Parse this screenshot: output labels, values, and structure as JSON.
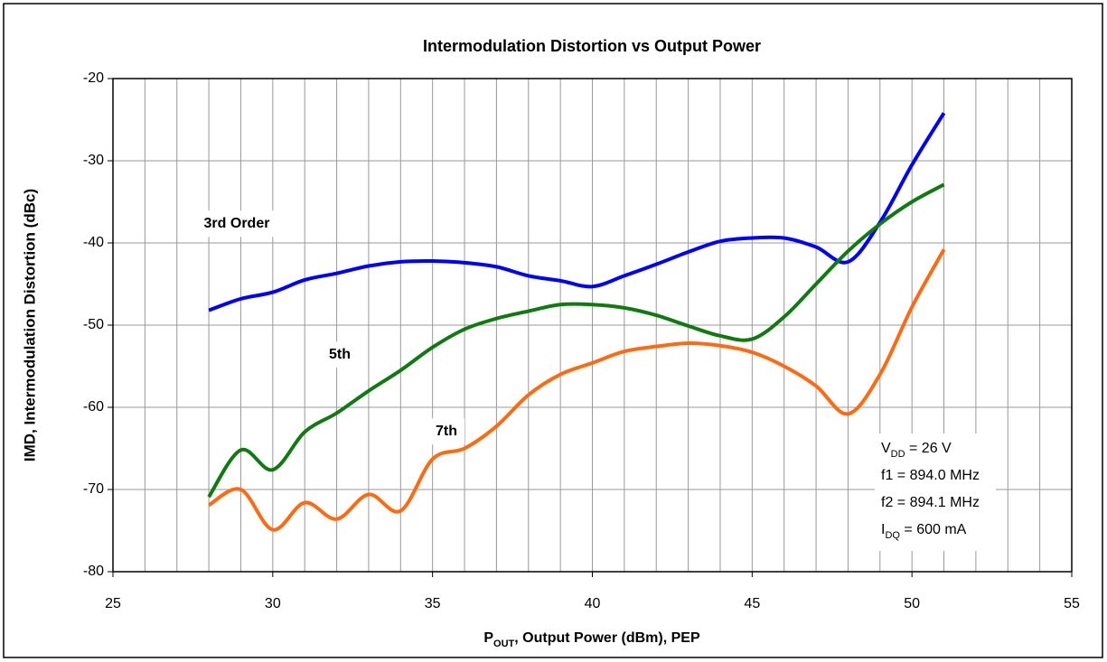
{
  "chart_data": {
    "type": "line",
    "title": "Intermodulation Distortion vs Output Power",
    "y_label": "IMD, Intermodulation Distortion (dBc)",
    "x_label": [
      {
        "text": "P"
      },
      {
        "text": "OUT",
        "sub": true
      },
      {
        "text": ", Output Power (dBm), PEP"
      }
    ],
    "x": [
      28,
      29,
      30,
      31,
      32,
      33,
      34,
      35,
      36,
      37,
      38,
      39,
      40,
      41,
      42,
      43,
      44,
      45,
      46,
      47,
      48,
      49,
      50,
      51
    ],
    "series": [
      {
        "name": "3rd Order",
        "color": "#0000ff",
        "values": [
          -48.2,
          -46.8,
          -46,
          -44.5,
          -43.7,
          -42.8,
          -42.3,
          -42.2,
          -42.4,
          -42.9,
          -44,
          -44.6,
          -45.3,
          -44,
          -42.6,
          -41.1,
          -39.8,
          -39.4,
          -39.4,
          -40.5,
          -42.3,
          -37.5,
          -30.5,
          -24.2
        ]
      },
      {
        "name": "5th",
        "color": "#0f7a0f",
        "values": [
          -70.9,
          -65.2,
          -67.6,
          -63,
          -60.7,
          -58,
          -55.5,
          -52.7,
          -50.5,
          -49.2,
          -48.3,
          -47.5,
          -47.5,
          -47.9,
          -48.8,
          -50.1,
          -51.3,
          -51.7,
          -49,
          -45,
          -41,
          -37.7,
          -35,
          -32.9
        ]
      },
      {
        "name": "7th",
        "color": "#ff6a10",
        "values": [
          -71.9,
          -70,
          -74.9,
          -71.6,
          -73.6,
          -70.6,
          -72.6,
          -66.3,
          -65,
          -62.3,
          -58.5,
          -56,
          -54.6,
          -53.2,
          -52.6,
          -52.2,
          -52.5,
          -53.3,
          -55,
          -57.4,
          -60.8,
          -56,
          -47.8,
          -40.8
        ]
      }
    ],
    "xlim": [
      25,
      55
    ],
    "xticks": [
      25,
      30,
      35,
      40,
      45,
      50,
      55
    ],
    "x_minor_grid": [
      26,
      27,
      28,
      29,
      31,
      32,
      33,
      34,
      36,
      37,
      38,
      39,
      41,
      42,
      43,
      44,
      46,
      47,
      48,
      49,
      51,
      52,
      53,
      54
    ],
    "ylim": [
      -80,
      -20
    ],
    "yticks": [
      -80,
      -70,
      -60,
      -50,
      -40,
      -30,
      -20
    ],
    "grid": true,
    "annotation": [
      [
        {
          "text": "V"
        },
        {
          "text": "DD",
          "sub": true
        },
        {
          "text": " = 26 V"
        }
      ],
      [
        {
          "text": "f1 = 894.0 MHz"
        }
      ],
      [
        {
          "text": "f2 = 894.1 MHz"
        }
      ],
      [
        {
          "text": "I"
        },
        {
          "text": "DQ",
          "sub": true
        },
        {
          "text": " = 600 mA"
        }
      ]
    ]
  }
}
